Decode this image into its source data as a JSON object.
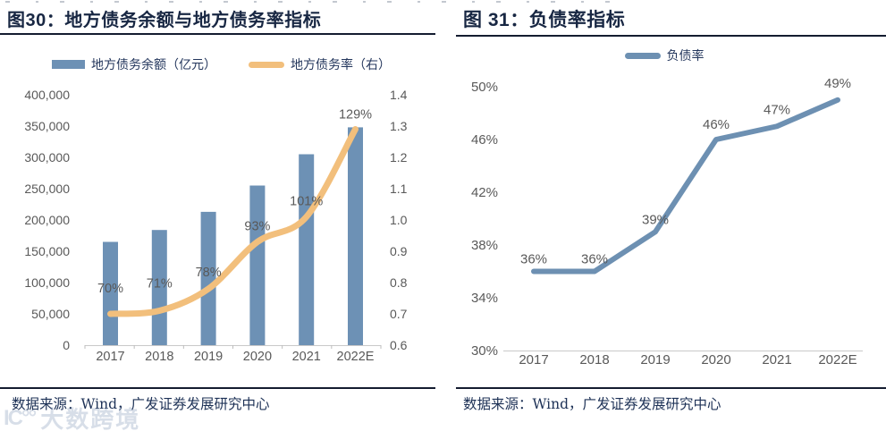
{
  "watermark": {
    "icon": "IC°°",
    "text": "大数跨境"
  },
  "figures": [
    {
      "title": "图30：地方债务余额与地方债务率指标",
      "legend": [
        {
          "label": "地方债务余额（亿元）",
          "type": "bar",
          "color": "#6d91b5"
        },
        {
          "label": "地方债务率（右）",
          "type": "line",
          "color": "#f2bf7c"
        }
      ],
      "source": "数据来源：Wind，广发证券发展研究中心"
    },
    {
      "title": "图 31：负债率指标",
      "legend": [
        {
          "label": "负债率",
          "type": "line",
          "color": "#6d90b2"
        }
      ],
      "source": "数据来源：Wind，广发证券发展研究中心"
    }
  ],
  "chart_data": [
    {
      "type": "bar+line",
      "title": "地方债务余额与地方债务率指标",
      "categories": [
        "2017",
        "2018",
        "2019",
        "2020",
        "2021",
        "2022E"
      ],
      "series": [
        {
          "name": "地方债务余额（亿元）",
          "type": "bar",
          "axis": "left",
          "color": "#6d91b5",
          "values": [
            165000,
            184000,
            213000,
            255000,
            305000,
            348000
          ]
        },
        {
          "name": "地方债务率（右）",
          "type": "line",
          "axis": "right",
          "color": "#f2bf7c",
          "values": [
            0.7,
            0.71,
            0.78,
            0.93,
            1.01,
            1.29
          ],
          "labels": [
            "70%",
            "71%",
            "78%",
            "93%",
            "101%",
            "129%"
          ]
        }
      ],
      "left_axis": {
        "min": 0,
        "max": 400000,
        "step": 50000
      },
      "right_axis": {
        "min": 0.6,
        "max": 1.4,
        "step": 0.1
      },
      "grid": false,
      "legend_position": "top",
      "tick_color": "#595959"
    },
    {
      "type": "line",
      "title": "负债率指标",
      "categories": [
        "2017",
        "2018",
        "2019",
        "2020",
        "2021",
        "2022E"
      ],
      "series": [
        {
          "name": "负债率",
          "type": "line",
          "axis": "left",
          "color": "#6d90b2",
          "values": [
            36,
            36,
            39,
            46,
            47,
            49
          ],
          "labels": [
            "36%",
            "36%",
            "39%",
            "46%",
            "47%",
            "49%"
          ]
        }
      ],
      "left_axis": {
        "min": 30,
        "max": 50,
        "step": 4,
        "suffix": "%"
      },
      "grid": false,
      "legend_position": "top",
      "tick_color": "#595959"
    }
  ]
}
